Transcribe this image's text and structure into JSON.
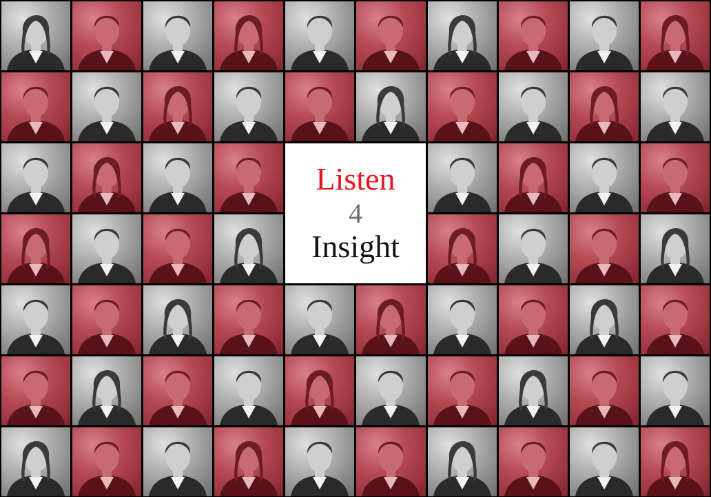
{
  "title": {
    "line1": "Listen",
    "line2": "4",
    "line3": "Insight"
  },
  "colors": {
    "accent_red": "#e8141e",
    "number_gray": "#6f6f6f",
    "text_black": "#111111",
    "tile_red": "#b54a55",
    "tile_gray": "#a9a9a9"
  },
  "tiles": [
    "gray",
    "red",
    "gray",
    "red",
    "gray",
    "red",
    "gray",
    "red",
    "gray",
    "red",
    "red",
    "gray",
    "red",
    "gray",
    "red",
    "gray",
    "red",
    "gray",
    "red",
    "gray",
    "gray",
    "red",
    "gray",
    "red",
    "title",
    "title",
    "gray",
    "red",
    "gray",
    "red",
    "red",
    "gray",
    "red",
    "gray",
    "title",
    "title",
    "red",
    "gray",
    "red",
    "gray",
    "gray",
    "red",
    "gray",
    "red",
    "gray",
    "red",
    "gray",
    "red",
    "gray",
    "red",
    "red",
    "gray",
    "red",
    "gray",
    "red",
    "gray",
    "red",
    "gray",
    "red",
    "gray",
    "gray",
    "red",
    "gray",
    "red",
    "gray",
    "red",
    "gray",
    "red",
    "gray",
    "red"
  ]
}
